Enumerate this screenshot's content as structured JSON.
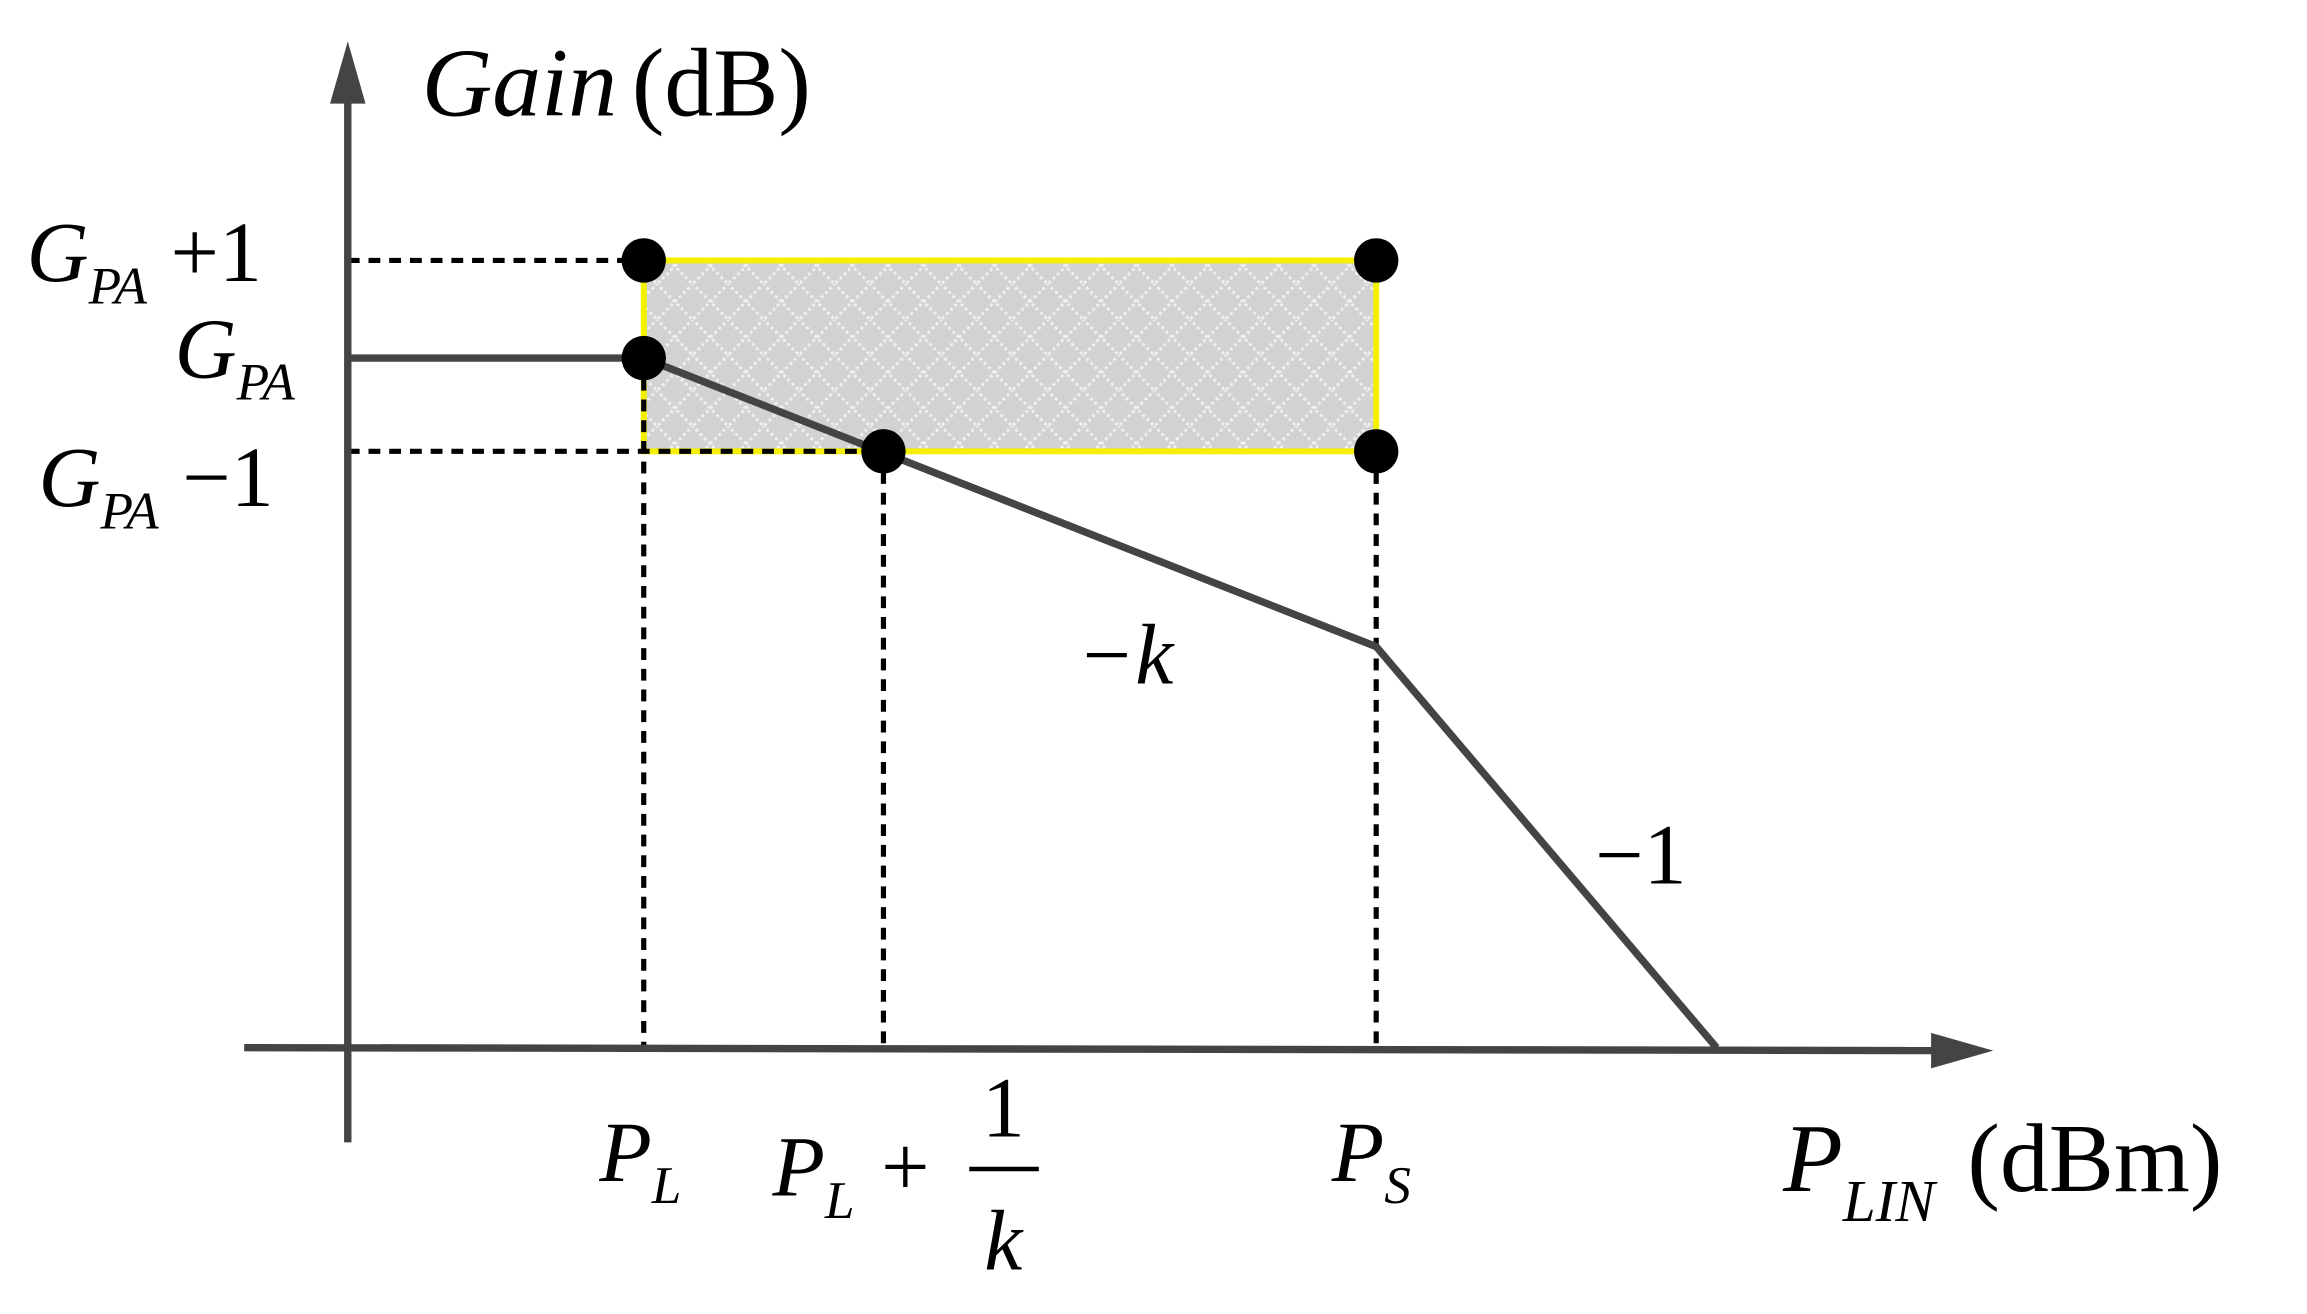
{
  "axes": {
    "y_label": {
      "main": "Gain",
      "unit": "(dB)"
    },
    "x_label": {
      "main": "P",
      "sub": "LIN",
      "unit": "(dBm)"
    }
  },
  "y_labels": [
    {
      "main": "G",
      "sub": "PA",
      "suffix": "+1"
    },
    {
      "main": "G",
      "sub": "PA"
    },
    {
      "main": "G",
      "sub": "PA",
      "suffix": "−1"
    }
  ],
  "x_labels": [
    {
      "main": "P",
      "sub": "L"
    },
    {
      "main": "P",
      "sub": "L",
      "suffix": "+",
      "frac_num": "1",
      "frac_den": "k"
    },
    {
      "main": "P",
      "sub": "S"
    }
  ],
  "slopes": [
    "−k",
    "−1"
  ]
}
